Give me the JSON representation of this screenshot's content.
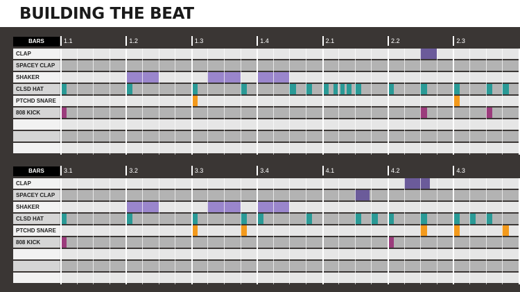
{
  "title": "BUILDING THE BEAT",
  "colors": {
    "clap": "#6b5b9a",
    "shaker": "#9a86cc",
    "hat": "#2a9a96",
    "snare": "#f39a1c",
    "kick": "#9b3c7c"
  },
  "panels": [
    {
      "bars_label": "BARS",
      "ticks": [
        "1.1",
        "1.2",
        "1.3",
        "1.4",
        "2.1",
        "2.2",
        "2.3"
      ],
      "tracks": [
        {
          "label": "CLAP",
          "color": "clap",
          "steps": [
            [
              22,
              23
            ]
          ]
        },
        {
          "label": "SPACEY CLAP",
          "color": "clap",
          "steps": []
        },
        {
          "label": "SHAKER",
          "color": "shaker",
          "steps": [
            [
              4,
              6
            ],
            [
              9,
              11
            ],
            [
              12,
              14
            ]
          ]
        },
        {
          "label": "CLSD HAT",
          "color": "hat",
          "steps": [
            [
              0,
              0.4
            ],
            [
              4,
              4.4
            ],
            [
              8,
              8.4
            ],
            [
              11,
              11.4
            ],
            [
              14,
              14.4
            ],
            [
              15,
              15.4
            ],
            [
              16,
              16.4
            ],
            [
              16.7,
              16.9
            ],
            [
              17.1,
              17.3
            ],
            [
              17.5,
              17.8
            ],
            [
              18,
              18.4
            ],
            [
              20,
              20.4
            ],
            [
              22,
              22.4
            ],
            [
              24,
              24.4
            ],
            [
              26,
              26.4
            ],
            [
              27,
              27.4
            ],
            [
              28,
              28.4
            ]
          ]
        },
        {
          "label": "PTCHD SNARE",
          "color": "snare",
          "steps": [
            [
              8,
              8.4
            ],
            [
              24,
              24.4
            ]
          ]
        },
        {
          "label": "808 KICK",
          "color": "kick",
          "steps": [
            [
              0,
              0.4
            ],
            [
              22,
              22.4
            ],
            [
              26,
              26.4
            ]
          ]
        },
        {
          "label": "",
          "color": "",
          "steps": []
        },
        {
          "label": "",
          "color": "",
          "steps": []
        },
        {
          "label": "",
          "color": "",
          "steps": []
        }
      ]
    },
    {
      "bars_label": "BARS",
      "ticks": [
        "3.1",
        "3.2",
        "3.3",
        "3.4",
        "4.1",
        "4.2",
        "4.3"
      ],
      "tracks": [
        {
          "label": "CLAP",
          "color": "clap",
          "steps": [
            [
              21,
              22.6
            ]
          ]
        },
        {
          "label": "SPACEY CLAP",
          "color": "clap",
          "steps": [
            [
              18,
              18.9
            ]
          ]
        },
        {
          "label": "SHAKER",
          "color": "shaker",
          "steps": [
            [
              4,
              6
            ],
            [
              9,
              11
            ],
            [
              12,
              14
            ]
          ]
        },
        {
          "label": "CLSD HAT",
          "color": "hat",
          "steps": [
            [
              0,
              0.4
            ],
            [
              4,
              4.4
            ],
            [
              8,
              8.4
            ],
            [
              11,
              11.4
            ],
            [
              12,
              12.4
            ],
            [
              15,
              15.4
            ],
            [
              18,
              18.4
            ],
            [
              19,
              19.4
            ],
            [
              20,
              20.4
            ],
            [
              22,
              22.4
            ],
            [
              24,
              24.4
            ],
            [
              25,
              25.4
            ],
            [
              26,
              26.4
            ],
            [
              28,
              28.4
            ]
          ]
        },
        {
          "label": "PTCHD SNARE",
          "color": "snare",
          "steps": [
            [
              8,
              8.4
            ],
            [
              11,
              11.4
            ],
            [
              22,
              22.4
            ],
            [
              24,
              24.4
            ],
            [
              27,
              27.4
            ]
          ]
        },
        {
          "label": "808 KICK",
          "color": "kick",
          "steps": [
            [
              0,
              0.4
            ],
            [
              20,
              20.4
            ]
          ]
        },
        {
          "label": "",
          "color": "",
          "steps": []
        },
        {
          "label": "",
          "color": "",
          "steps": []
        },
        {
          "label": "",
          "color": "",
          "steps": []
        }
      ]
    }
  ]
}
